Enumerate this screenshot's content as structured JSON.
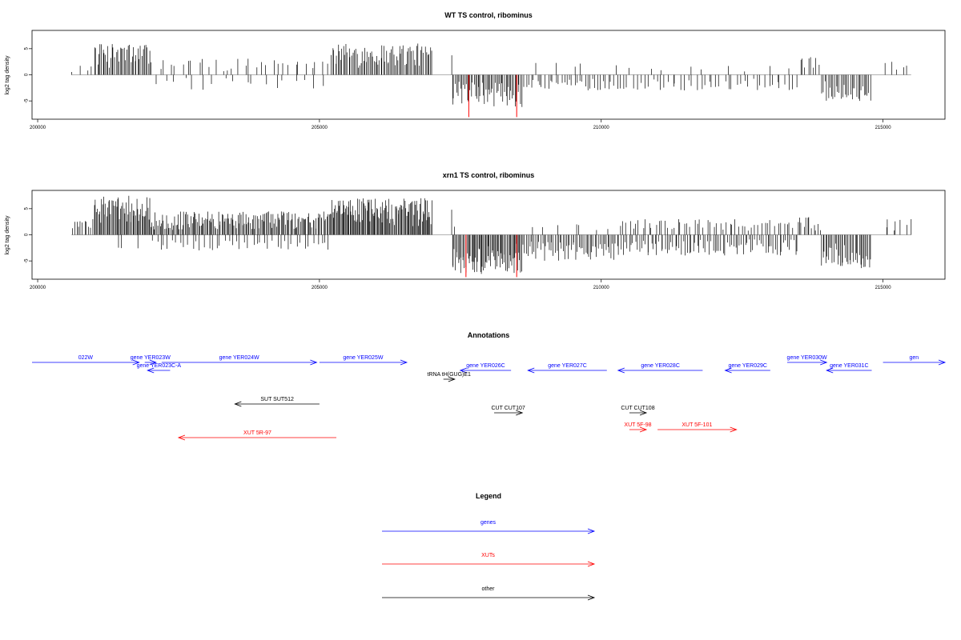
{
  "colors": {
    "gene": "#0000ff",
    "xut": "#ff0000",
    "other": "#000000",
    "baseline": "#999999",
    "highlight": "#ff0000",
    "bar": "#000000"
  },
  "chart_data": [
    {
      "type": "bar",
      "title": "WT TS control, ribominus",
      "ylabel": "log2 tag density",
      "xlim": [
        199900,
        216100
      ],
      "ylim": [
        -8.5,
        8.5
      ],
      "xticks": [
        200000,
        205000,
        210000,
        215000
      ],
      "yticks": [
        5,
        0,
        -5
      ],
      "xtick_labels": [
        "200000",
        "205000",
        "210000",
        "215000"
      ],
      "ytick_labels": [
        "5",
        "0",
        "-5"
      ],
      "highlights": [
        {
          "x": 207650,
          "y": -8.1
        },
        {
          "x": 208500,
          "y": -8.1
        }
      ],
      "regions": [
        {
          "x0": 200600,
          "x1": 201000,
          "density": 0.015,
          "max": 2.2,
          "sign": 1
        },
        {
          "x0": 201000,
          "x1": 202000,
          "density": 0.06,
          "max": 6,
          "sign": 1
        },
        {
          "x0": 202000,
          "x1": 205200,
          "density": 0.014,
          "max": 3.2,
          "sign": 1
        },
        {
          "x0": 202000,
          "x1": 205200,
          "density": 0.008,
          "max": -3,
          "sign": -1
        },
        {
          "x0": 205200,
          "x1": 207000,
          "density": 0.06,
          "max": 6,
          "sign": 1
        },
        {
          "x0": 207300,
          "x1": 207400,
          "density": 0.02,
          "max": 5,
          "sign": 1
        },
        {
          "x0": 207350,
          "x1": 208600,
          "density": 0.06,
          "max": -6.2,
          "sign": -1
        },
        {
          "x0": 208600,
          "x1": 210300,
          "density": 0.03,
          "max": -3,
          "sign": -1
        },
        {
          "x0": 208600,
          "x1": 210300,
          "density": 0.004,
          "max": 2.6,
          "sign": 1
        },
        {
          "x0": 210300,
          "x1": 213500,
          "density": 0.02,
          "max": -3,
          "sign": -1
        },
        {
          "x0": 210300,
          "x1": 213500,
          "density": 0.004,
          "max": 2,
          "sign": 1
        },
        {
          "x0": 213500,
          "x1": 213900,
          "density": 0.03,
          "max": 3.5,
          "sign": 1
        },
        {
          "x0": 213900,
          "x1": 214800,
          "density": 0.05,
          "max": -5,
          "sign": -1
        },
        {
          "x0": 215000,
          "x1": 215500,
          "density": 0.015,
          "max": 3.2,
          "sign": 1
        }
      ]
    },
    {
      "type": "bar",
      "title": "xrn1 TS control, ribominus",
      "ylabel": "log2 tag density",
      "xlim": [
        199900,
        216100
      ],
      "ylim": [
        -8.5,
        8.5
      ],
      "xticks": [
        200000,
        205000,
        210000,
        215000
      ],
      "yticks": [
        5,
        0,
        -5
      ],
      "xtick_labels": [
        "200000",
        "205000",
        "210000",
        "215000"
      ],
      "ytick_labels": [
        "5",
        "0",
        "-5"
      ],
      "highlights": [
        {
          "x": 207600,
          "y": -8.1
        },
        {
          "x": 208500,
          "y": -8.1
        }
      ],
      "regions": [
        {
          "x0": 200600,
          "x1": 201000,
          "density": 0.04,
          "max": 3,
          "sign": 1
        },
        {
          "x0": 201000,
          "x1": 202000,
          "density": 0.08,
          "max": 7.5,
          "sign": 1
        },
        {
          "x0": 201200,
          "x1": 202000,
          "density": 0.006,
          "max": -3,
          "sign": -1
        },
        {
          "x0": 202000,
          "x1": 205200,
          "density": 0.07,
          "max": 4.5,
          "sign": 1
        },
        {
          "x0": 202000,
          "x1": 205200,
          "density": 0.02,
          "max": -3,
          "sign": -1
        },
        {
          "x0": 205200,
          "x1": 207000,
          "density": 0.09,
          "max": 7,
          "sign": 1
        },
        {
          "x0": 207300,
          "x1": 207400,
          "density": 0.03,
          "max": 5,
          "sign": 1
        },
        {
          "x0": 207350,
          "x1": 208600,
          "density": 0.08,
          "max": -7.5,
          "sign": -1
        },
        {
          "x0": 208600,
          "x1": 210300,
          "density": 0.05,
          "max": -5,
          "sign": -1
        },
        {
          "x0": 208600,
          "x1": 210300,
          "density": 0.006,
          "max": 2,
          "sign": 1
        },
        {
          "x0": 210300,
          "x1": 213500,
          "density": 0.04,
          "max": -4,
          "sign": -1
        },
        {
          "x0": 210300,
          "x1": 213500,
          "density": 0.025,
          "max": 3,
          "sign": 1
        },
        {
          "x0": 213500,
          "x1": 213900,
          "density": 0.04,
          "max": 3.5,
          "sign": 1
        },
        {
          "x0": 213900,
          "x1": 214800,
          "density": 0.06,
          "max": -6.5,
          "sign": -1
        },
        {
          "x0": 215000,
          "x1": 215500,
          "density": 0.02,
          "max": 3,
          "sign": 1
        }
      ]
    }
  ],
  "annotations": {
    "title": "Annotations",
    "features": [
      {
        "label": "022W",
        "type": "gene",
        "x0": 199900,
        "x1": 201800,
        "dir": "right",
        "row": 0
      },
      {
        "label": "gene YER023W",
        "type": "gene",
        "x0": 201900,
        "x1": 202100,
        "dir": "right",
        "row": 0
      },
      {
        "label": "gene YER023C-A",
        "type": "gene",
        "x0": 201950,
        "x1": 202350,
        "dir": "left",
        "row": 1
      },
      {
        "label": "gene YER024W",
        "type": "gene",
        "x0": 202200,
        "x1": 204950,
        "dir": "right",
        "row": 0
      },
      {
        "label": "gene YER025W",
        "type": "gene",
        "x0": 205000,
        "x1": 206550,
        "dir": "right",
        "row": 0
      },
      {
        "label": "gene YER026C",
        "type": "gene",
        "x0": 207500,
        "x1": 208400,
        "dir": "left",
        "row": 1
      },
      {
        "label": "tRNA tH(GUG)E1",
        "type": "other",
        "x0": 207200,
        "x1": 207400,
        "dir": "right",
        "row": 2
      },
      {
        "label": "gene YER027C",
        "type": "gene",
        "x0": 208700,
        "x1": 210100,
        "dir": "left",
        "row": 1
      },
      {
        "label": "gene YER028C",
        "type": "gene",
        "x0": 210300,
        "x1": 211800,
        "dir": "left",
        "row": 1
      },
      {
        "label": "gene YER029C",
        "type": "gene",
        "x0": 212200,
        "x1": 213000,
        "dir": "left",
        "row": 1
      },
      {
        "label": "gene YER030W",
        "type": "gene",
        "x0": 213300,
        "x1": 214000,
        "dir": "right",
        "row": 0
      },
      {
        "label": "gene YER031C",
        "type": "gene",
        "x0": 214000,
        "x1": 214800,
        "dir": "left",
        "row": 1
      },
      {
        "label": "gen",
        "type": "gene",
        "x0": 215000,
        "x1": 216100,
        "dir": "right",
        "row": 0
      },
      {
        "label": "SUT SUT512",
        "type": "other",
        "x0": 203500,
        "x1": 205000,
        "dir": "left",
        "row": 3
      },
      {
        "label": "CUT CUT107",
        "type": "other",
        "x0": 208100,
        "x1": 208600,
        "dir": "right",
        "row": 4
      },
      {
        "label": "CUT CUT108",
        "type": "other",
        "x0": 210500,
        "x1": 210800,
        "dir": "right",
        "row": 4
      },
      {
        "label": "XUT 5R-97",
        "type": "xut",
        "x0": 202500,
        "x1": 205300,
        "dir": "left",
        "row": 6
      },
      {
        "label": "XUT 5F-98",
        "type": "xut",
        "x0": 210500,
        "x1": 210800,
        "dir": "right",
        "row": 5
      },
      {
        "label": "XUT 5F-101",
        "type": "xut",
        "x0": 211000,
        "x1": 212400,
        "dir": "right",
        "row": 5
      }
    ]
  },
  "legend": {
    "title": "Legend",
    "items": [
      {
        "label": "genes",
        "type": "gene"
      },
      {
        "label": "XUTs",
        "type": "xut"
      },
      {
        "label": "other",
        "type": "other"
      }
    ]
  }
}
